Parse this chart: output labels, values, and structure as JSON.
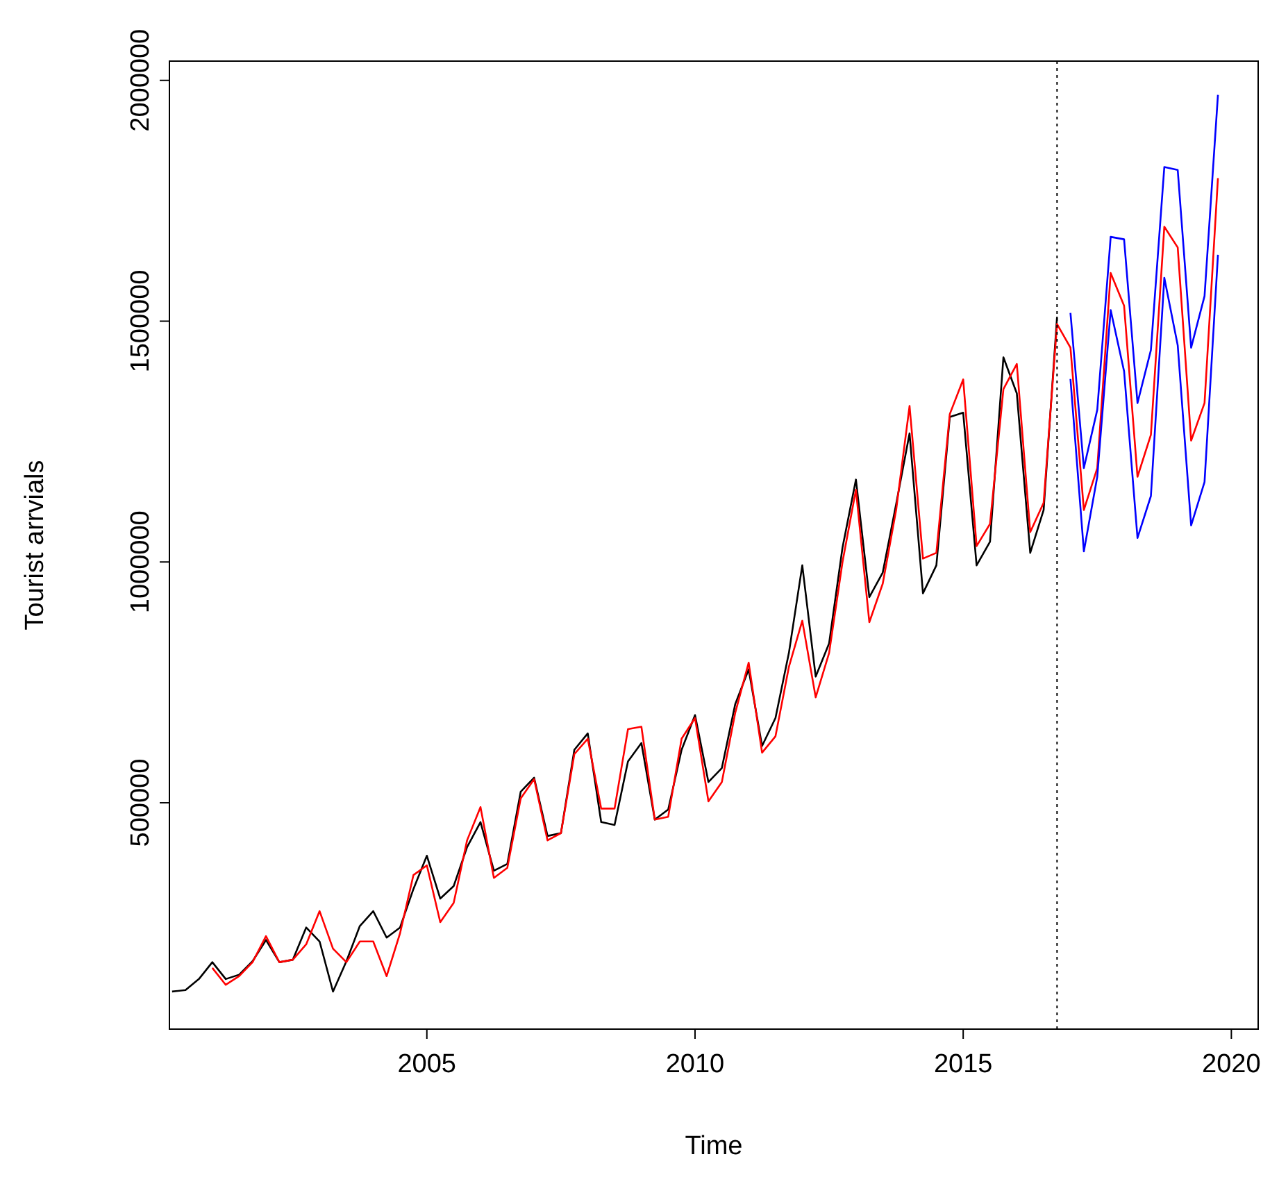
{
  "chart_data": {
    "type": "line",
    "xlabel": "Time",
    "ylabel": "Tourist arrvials",
    "xlim": [
      2000.2,
      2020.5
    ],
    "ylim": [
      30000,
      2040000
    ],
    "xticks": [
      2005,
      2010,
      2015,
      2020
    ],
    "yticks": [
      500000,
      1000000,
      1500000,
      2000000
    ],
    "grid": false,
    "marker": "none",
    "line_style": "solid",
    "series": [
      {
        "color": "#000000",
        "x": [
          2000.25,
          2000.5,
          2000.75,
          2001,
          2001.25,
          2001.5,
          2001.75,
          2002,
          2002.25,
          2002.5,
          2002.75,
          2003,
          2003.25,
          2003.5,
          2003.75,
          2004,
          2004.25,
          2004.5,
          2004.75,
          2005,
          2005.25,
          2005.5,
          2005.75,
          2006,
          2006.25,
          2006.5,
          2006.75,
          2007,
          2007.25,
          2007.5,
          2007.75,
          2008,
          2008.25,
          2008.5,
          2008.75,
          2009,
          2009.25,
          2009.5,
          2009.75,
          2010,
          2010.25,
          2010.5,
          2010.75,
          2011,
          2011.25,
          2011.5,
          2011.75,
          2012,
          2012.25,
          2012.5,
          2012.75,
          2013,
          2013.25,
          2013.5,
          2013.75,
          2014,
          2014.25,
          2014.5,
          2014.75,
          2015,
          2015.25,
          2015.5,
          2015.75,
          2016,
          2016.25,
          2016.5,
          2016.75
        ],
        "values": [
          108000,
          111000,
          134000,
          169000,
          134000,
          143000,
          171000,
          215000,
          169000,
          174000,
          241000,
          212000,
          108000,
          171000,
          244000,
          275000,
          220000,
          241000,
          321000,
          390000,
          301000,
          327000,
          408000,
          460000,
          359000,
          373000,
          523000,
          552000,
          431000,
          437000,
          610000,
          644000,
          460000,
          454000,
          586000,
          624000,
          465000,
          486000,
          610000,
          682000,
          543000,
          572000,
          705000,
          777000,
          618000,
          676000,
          811000,
          993000,
          762000,
          831000,
          1030000,
          1171000,
          927000,
          978000,
          1120000,
          1267000,
          935000,
          993000,
          1301000,
          1310000,
          993000,
          1042000,
          1425000,
          1350000,
          1019000,
          1108000,
          1509000
        ]
      },
      {
        "color": "#ff0000",
        "x": [
          2001,
          2001.25,
          2001.5,
          2001.75,
          2002,
          2002.25,
          2002.5,
          2002.75,
          2003,
          2003.25,
          2003.5,
          2003.75,
          2004,
          2004.25,
          2004.5,
          2004.75,
          2005,
          2005.25,
          2005.5,
          2005.75,
          2006,
          2006.25,
          2006.5,
          2006.75,
          2007,
          2007.25,
          2007.5,
          2007.75,
          2008,
          2008.25,
          2008.5,
          2008.75,
          2009,
          2009.25,
          2009.5,
          2009.75,
          2010,
          2010.25,
          2010.5,
          2010.75,
          2011,
          2011.25,
          2011.5,
          2011.75,
          2012,
          2012.25,
          2012.5,
          2012.75,
          2013,
          2013.25,
          2013.5,
          2013.75,
          2014,
          2014.25,
          2014.5,
          2014.75,
          2015,
          2015.25,
          2015.5,
          2015.75,
          2016,
          2016.25,
          2016.5,
          2016.75,
          2017,
          2017.25,
          2017.5,
          2017.75,
          2018,
          2018.25,
          2018.5,
          2018.75,
          2019,
          2019.25,
          2019.5,
          2019.75
        ],
        "values": [
          157000,
          122000,
          140000,
          169000,
          223000,
          169000,
          174000,
          206000,
          275000,
          197000,
          169000,
          212000,
          212000,
          140000,
          229000,
          350000,
          370000,
          252000,
          292000,
          422000,
          491000,
          344000,
          365000,
          509000,
          549000,
          422000,
          437000,
          601000,
          633000,
          488000,
          488000,
          653000,
          658000,
          465000,
          471000,
          633000,
          676000,
          503000,
          543000,
          687000,
          791000,
          604000,
          638000,
          782000,
          878000,
          719000,
          811000,
          1000000,
          1150000,
          875000,
          955000,
          1108000,
          1324000,
          1007000,
          1019000,
          1307000,
          1379000,
          1033000,
          1079000,
          1359000,
          1411000,
          1062000,
          1123000,
          1494000,
          1445000,
          1108000,
          1195000,
          1600000,
          1532000,
          1177000,
          1264000,
          1696000,
          1653000,
          1252000,
          1330000,
          1797000
        ]
      },
      {
        "color": "#0000ff",
        "x": [
          2017,
          2017.25,
          2017.5,
          2017.75,
          2018,
          2018.25,
          2018.5,
          2018.75,
          2019,
          2019.25,
          2019.5,
          2019.75
        ],
        "values": [
          1517000,
          1195000,
          1316000,
          1675000,
          1670000,
          1330000,
          1440000,
          1820000,
          1814000,
          1445000,
          1552000,
          1970000
        ]
      },
      {
        "color": "#0000ff",
        "x": [
          2017,
          2017.25,
          2017.5,
          2017.75,
          2018,
          2018.25,
          2018.5,
          2018.75,
          2019,
          2019.25,
          2019.5,
          2019.75
        ],
        "values": [
          1380000,
          1022000,
          1177000,
          1523000,
          1396000,
          1050000,
          1137000,
          1590000,
          1450000,
          1076000,
          1166000,
          1638000
        ]
      }
    ],
    "ref_lines": [
      {
        "axis": "x",
        "value": 2016.75,
        "color": "#000000",
        "line_style": "dotted"
      }
    ]
  }
}
